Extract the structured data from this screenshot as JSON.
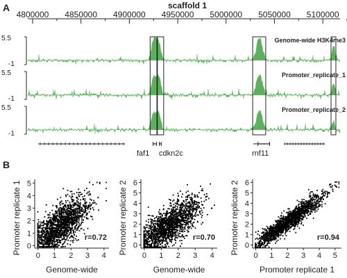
{
  "panel_a": {
    "letter": "A",
    "top_axis_title": "scaffold 1",
    "gene_labels": [
      "faf1",
      "cdkn2c",
      "rnf11"
    ]
  },
  "panel_b": {
    "letter": "B"
  },
  "colors": {
    "track_fill": "#5bb25b",
    "highlight_box": "#222222",
    "scatter_points": "#000000",
    "text": "#222222"
  },
  "chart_data": [
    {
      "type": "area",
      "x_axis_title": "scaffold 1",
      "x_ticks": [
        4800000,
        4850000,
        4900000,
        4950000,
        5000000,
        5050000,
        5100000
      ],
      "xlim": [
        4795000,
        5125000
      ],
      "ylim": [
        -1,
        5.5
      ],
      "y_tick_labels": [
        "5.5",
        "-1"
      ],
      "grid": false,
      "series": [
        {
          "name": "Genome-wide H3K4me3"
        },
        {
          "name": "Promoter_replicate_1"
        },
        {
          "name": "Promoter_replicate_2"
        }
      ],
      "peaks": [
        {
          "center": 4925500,
          "width": 2600,
          "heights": [
            5.0,
            4.2,
            3.8
          ]
        },
        {
          "center": 4930500,
          "width": 2200,
          "heights": [
            3.6,
            4.0,
            3.5
          ]
        },
        {
          "center": 5034500,
          "width": 3000,
          "heights": [
            5.2,
            4.8,
            4.6
          ]
        },
        {
          "center": 5111000,
          "width": 1500,
          "heights": [
            3.8,
            2.8,
            2.0
          ]
        }
      ],
      "highlight_regions": [
        [
          4921500,
          4928500
        ],
        [
          4929000,
          4935500
        ],
        [
          5027500,
          5041000
        ],
        [
          5108500,
          5113500
        ]
      ],
      "gene_annotations": [
        {
          "label": "faf1",
          "start": 4924500,
          "end": 4928000
        },
        {
          "label": "cdkn2c",
          "start": 4931000,
          "end": 4933000
        },
        {
          "label": "rnf11",
          "start": 5033000,
          "end": 5045000
        }
      ]
    },
    {
      "type": "scatter",
      "xlabel": "Genome-wide",
      "ylabel": "Promoter replicate 1",
      "xlim": [
        -0.2,
        4.3
      ],
      "ylim": [
        -0.2,
        5.3
      ],
      "x_ticks": [
        0,
        1,
        2,
        3,
        4
      ],
      "y_ticks": [
        0,
        1,
        2,
        3,
        4,
        5
      ],
      "annotation": "r=0.72",
      "correlation": 0.72,
      "cloud": {
        "center": [
          1.3,
          1.6
        ],
        "sd": [
          0.9,
          1.2
        ],
        "slope": 0.95
      },
      "points": [
        [
          0.1,
          0.3
        ],
        [
          0.4,
          0.9
        ],
        [
          0.6,
          0.5
        ],
        [
          0.8,
          1.4
        ],
        [
          1.0,
          1.1
        ],
        [
          1.2,
          1.9
        ],
        [
          1.4,
          1.5
        ],
        [
          1.6,
          2.2
        ],
        [
          1.8,
          2.0
        ],
        [
          2.0,
          2.6
        ],
        [
          2.2,
          2.3
        ],
        [
          2.4,
          3.0
        ],
        [
          2.6,
          2.8
        ],
        [
          2.8,
          3.4
        ],
        [
          3.0,
          3.1
        ],
        [
          3.2,
          3.7
        ],
        [
          3.4,
          3.5
        ],
        [
          3.6,
          3.9
        ],
        [
          0.9,
          2.4
        ],
        [
          1.5,
          0.9
        ],
        [
          2.1,
          3.3
        ],
        [
          2.7,
          2.1
        ],
        [
          0.5,
          1.8
        ],
        [
          3.1,
          4.2
        ]
      ]
    },
    {
      "type": "scatter",
      "xlabel": "Genome-wide",
      "ylabel": "Promoter replicate 2",
      "xlim": [
        -0.2,
        4.3
      ],
      "ylim": [
        -0.3,
        6.3
      ],
      "x_ticks": [
        0,
        1,
        2,
        3,
        4
      ],
      "y_ticks": [
        0,
        1,
        2,
        3,
        4,
        5,
        6
      ],
      "annotation": "r=0.70",
      "correlation": 0.7,
      "cloud": {
        "center": [
          1.4,
          1.9
        ],
        "sd": [
          0.9,
          1.3
        ],
        "slope": 1.05
      },
      "points": [
        [
          0.1,
          0.4
        ],
        [
          0.4,
          1.0
        ],
        [
          0.6,
          0.6
        ],
        [
          0.8,
          1.6
        ],
        [
          1.0,
          1.2
        ],
        [
          1.2,
          2.1
        ],
        [
          1.4,
          1.7
        ],
        [
          1.6,
          2.5
        ],
        [
          1.8,
          2.2
        ],
        [
          2.0,
          2.9
        ],
        [
          2.2,
          2.6
        ],
        [
          2.4,
          3.3
        ],
        [
          2.6,
          3.1
        ],
        [
          2.8,
          3.8
        ],
        [
          3.0,
          3.5
        ],
        [
          3.2,
          4.1
        ],
        [
          3.4,
          3.9
        ],
        [
          3.6,
          4.4
        ],
        [
          0.9,
          2.7
        ],
        [
          1.5,
          1.0
        ],
        [
          2.1,
          3.7
        ],
        [
          2.7,
          2.4
        ],
        [
          0.5,
          2.0
        ],
        [
          3.1,
          4.7
        ]
      ]
    },
    {
      "type": "scatter",
      "xlabel": "Promoter replicate 1",
      "ylabel": "Promoter replicate 2",
      "xlim": [
        -0.2,
        5.4
      ],
      "ylim": [
        -0.3,
        6.3
      ],
      "x_ticks": [
        0,
        1,
        2,
        3,
        4,
        5
      ],
      "y_ticks": [
        0,
        1,
        2,
        3,
        4,
        5,
        6
      ],
      "annotation": "r=0.94",
      "correlation": 0.94,
      "cloud": {
        "center": [
          2.0,
          2.3
        ],
        "sd": [
          1.1,
          1.3
        ],
        "slope": 1.12
      },
      "points": [
        [
          0.2,
          0.3
        ],
        [
          0.5,
          0.6
        ],
        [
          0.8,
          0.9
        ],
        [
          1.0,
          1.2
        ],
        [
          1.3,
          1.5
        ],
        [
          1.5,
          1.7
        ],
        [
          1.8,
          2.0
        ],
        [
          2.0,
          2.3
        ],
        [
          2.3,
          2.6
        ],
        [
          2.5,
          2.9
        ],
        [
          2.8,
          3.1
        ],
        [
          3.0,
          3.4
        ],
        [
          3.3,
          3.7
        ],
        [
          3.5,
          4.0
        ],
        [
          3.8,
          4.2
        ],
        [
          4.0,
          4.5
        ],
        [
          4.3,
          4.8
        ],
        [
          4.5,
          5.1
        ],
        [
          4.8,
          5.4
        ],
        [
          5.0,
          5.7
        ]
      ]
    }
  ]
}
